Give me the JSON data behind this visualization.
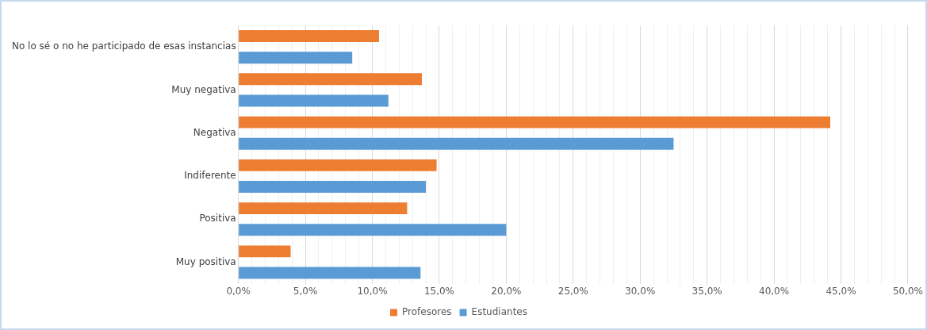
{
  "chart_data": {
    "type": "bar",
    "orientation": "horizontal",
    "categories": [
      "No lo sé o no he participado de esas instancias",
      "Muy negativa",
      "Negativa",
      "Indiferente",
      "Positiva",
      "Muy positiva"
    ],
    "series": [
      {
        "name": "Profesores",
        "color": "#ed7d31",
        "values": [
          10.5,
          13.7,
          44.2,
          14.8,
          12.6,
          3.9
        ]
      },
      {
        "name": "Estudiantes",
        "color": "#5b9bd5",
        "values": [
          8.5,
          11.2,
          32.5,
          14.0,
          20.0,
          13.6
        ]
      }
    ],
    "xlim": [
      0,
      50
    ],
    "xticks": [
      {
        "value": 0,
        "label": "0,0%"
      },
      {
        "value": 1,
        "label": null
      },
      {
        "value": 2,
        "label": null
      },
      {
        "value": 3,
        "label": null
      },
      {
        "value": 4,
        "label": null
      },
      {
        "value": 5,
        "label": "5,0%"
      },
      {
        "value": 6,
        "label": null
      },
      {
        "value": 7,
        "label": null
      },
      {
        "value": 8,
        "label": null
      },
      {
        "value": 9,
        "label": null
      },
      {
        "value": 10,
        "label": "10,0%"
      },
      {
        "value": 11,
        "label": null
      },
      {
        "value": 12,
        "label": null
      },
      {
        "value": 13,
        "label": null
      },
      {
        "value": 14,
        "label": null
      },
      {
        "value": 15,
        "label": "15,0%"
      },
      {
        "value": 16,
        "label": null
      },
      {
        "value": 17,
        "label": null
      },
      {
        "value": 18,
        "label": null
      },
      {
        "value": 19,
        "label": null
      },
      {
        "value": 20,
        "label": "20,0%"
      },
      {
        "value": 21,
        "label": null
      },
      {
        "value": 22,
        "label": null
      },
      {
        "value": 23,
        "label": null
      },
      {
        "value": 24,
        "label": null
      },
      {
        "value": 25,
        "label": "25,0%"
      },
      {
        "value": 26,
        "label": null
      },
      {
        "value": 27,
        "label": null
      },
      {
        "value": 28,
        "label": null
      },
      {
        "value": 29,
        "label": null
      },
      {
        "value": 30,
        "label": "30,0%"
      },
      {
        "value": 31,
        "label": null
      },
      {
        "value": 32,
        "label": null
      },
      {
        "value": 33,
        "label": null
      },
      {
        "value": 34,
        "label": null
      },
      {
        "value": 35,
        "label": "35,0%"
      },
      {
        "value": 36,
        "label": null
      },
      {
        "value": 37,
        "label": null
      },
      {
        "value": 38,
        "label": null
      },
      {
        "value": 39,
        "label": null
      },
      {
        "value": 40,
        "label": "40,0%"
      },
      {
        "value": 41,
        "label": null
      },
      {
        "value": 42,
        "label": null
      },
      {
        "value": 43,
        "label": null
      },
      {
        "value": 44,
        "label": null
      },
      {
        "value": 45,
        "label": "45,0%"
      },
      {
        "value": 46,
        "label": null
      },
      {
        "value": 47,
        "label": null
      },
      {
        "value": 48,
        "label": null
      },
      {
        "value": 49,
        "label": null
      },
      {
        "value": 50,
        "label": "50,0%"
      }
    ],
    "grid": "x",
    "legend": "bottom"
  }
}
